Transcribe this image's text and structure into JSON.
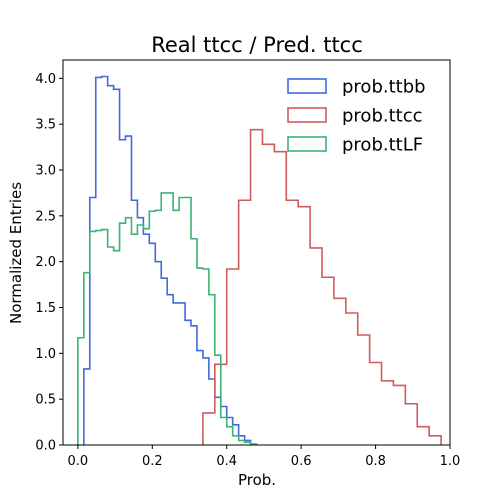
{
  "chart_data": {
    "type": "histogram",
    "title": "Real ttcc / Pred. ttcc",
    "xlabel": "Prob.",
    "ylabel": "Normalized Entries",
    "xlim": [
      -0.04,
      1.0
    ],
    "ylim": [
      0.0,
      4.2
    ],
    "xticks": [
      "0.0",
      "0.2",
      "0.4",
      "0.6",
      "0.8",
      "1.0"
    ],
    "yticks": [
      "0.0",
      "0.5",
      "1.0",
      "1.5",
      "2.0",
      "2.5",
      "3.0",
      "3.5",
      "4.0"
    ],
    "grid": false,
    "legend_position": "upper-right",
    "series": [
      {
        "name": "prob.ttbb",
        "color": "#4169e1",
        "edges": [
          0.016,
          0.032,
          0.048,
          0.064,
          0.08,
          0.096,
          0.112,
          0.128,
          0.144,
          0.16,
          0.176,
          0.192,
          0.208,
          0.224,
          0.24,
          0.256,
          0.272,
          0.288,
          0.304,
          0.32,
          0.336,
          0.352,
          0.368,
          0.384,
          0.4,
          0.416,
          0.432,
          0.448,
          0.464
        ],
        "values": [
          0.83,
          2.7,
          4.01,
          4.02,
          3.92,
          3.88,
          3.33,
          3.37,
          2.67,
          2.48,
          2.3,
          2.2,
          2.0,
          1.82,
          1.64,
          1.55,
          1.55,
          1.36,
          1.3,
          1.03,
          0.95,
          0.72,
          0.52,
          0.42,
          0.3,
          0.22,
          0.1,
          0.05
        ]
      },
      {
        "name": "prob.ttcc",
        "color": "#cd5c5c",
        "edges": [
          0.336,
          0.368,
          0.4,
          0.432,
          0.464,
          0.496,
          0.528,
          0.56,
          0.592,
          0.624,
          0.656,
          0.688,
          0.72,
          0.752,
          0.784,
          0.816,
          0.848,
          0.88,
          0.912,
          0.944,
          0.976
        ],
        "values": [
          0.35,
          0.88,
          1.92,
          2.67,
          3.44,
          3.28,
          3.2,
          2.67,
          2.6,
          2.15,
          1.83,
          1.6,
          1.44,
          1.2,
          0.9,
          0.7,
          0.65,
          0.45,
          0.2,
          0.1
        ]
      },
      {
        "name": "prob.ttLF",
        "color": "#3cb371",
        "edges": [
          0.0,
          0.016,
          0.032,
          0.048,
          0.064,
          0.08,
          0.096,
          0.112,
          0.128,
          0.144,
          0.16,
          0.176,
          0.192,
          0.208,
          0.224,
          0.24,
          0.256,
          0.272,
          0.288,
          0.304,
          0.32,
          0.336,
          0.352,
          0.368,
          0.384,
          0.4,
          0.416,
          0.432,
          0.448,
          0.464,
          0.48
        ],
        "values": [
          1.17,
          1.88,
          2.33,
          2.34,
          2.35,
          2.16,
          2.12,
          2.42,
          2.48,
          2.3,
          2.4,
          2.36,
          2.55,
          2.56,
          2.75,
          2.75,
          2.56,
          2.7,
          2.7,
          2.25,
          1.93,
          1.92,
          1.64,
          0.98,
          0.3,
          0.2,
          0.1,
          0.05,
          0.03,
          0.01
        ]
      }
    ]
  }
}
